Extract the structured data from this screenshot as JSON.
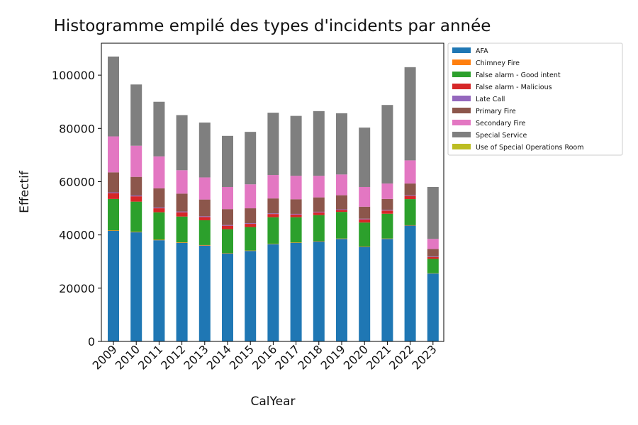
{
  "chart_data": {
    "type": "bar",
    "stacked": true,
    "title": "Histogramme empilé des types d'incidents par année",
    "xlabel": "CalYear",
    "ylabel": "Effectif",
    "ylim": [
      0,
      112000
    ],
    "yticks": [
      0,
      20000,
      40000,
      60000,
      80000,
      100000
    ],
    "grid": false,
    "legend_position": "outside-right-top",
    "categories": [
      "2009",
      "2010",
      "2011",
      "2012",
      "2013",
      "2014",
      "2015",
      "2016",
      "2017",
      "2018",
      "2019",
      "2020",
      "2021",
      "2022",
      "2023"
    ],
    "series": [
      {
        "name": "AFA",
        "color": "#1f77b4",
        "values": [
          41500,
          41000,
          38000,
          37000,
          36000,
          33000,
          34000,
          36500,
          37000,
          37500,
          38500,
          35500,
          38500,
          43500,
          25500
        ]
      },
      {
        "name": "Chimney Fire",
        "color": "#ff7f0e",
        "values": [
          200,
          200,
          200,
          200,
          200,
          150,
          150,
          150,
          150,
          150,
          150,
          150,
          150,
          150,
          100
        ]
      },
      {
        "name": "False alarm - Good intent",
        "color": "#2ca02c",
        "values": [
          11800,
          11300,
          10300,
          9700,
          9300,
          9000,
          8800,
          10000,
          9500,
          9800,
          10000,
          9000,
          9300,
          9800,
          5400
        ]
      },
      {
        "name": "False alarm - Malicious",
        "color": "#d62728",
        "values": [
          2200,
          2000,
          1500,
          1600,
          1200,
          1300,
          1200,
          1200,
          1000,
          1000,
          700,
          1200,
          1200,
          1200,
          700
        ]
      },
      {
        "name": "Late Call",
        "color": "#9467bd",
        "values": [
          300,
          300,
          300,
          300,
          300,
          250,
          250,
          250,
          250,
          250,
          250,
          250,
          250,
          250,
          200
        ]
      },
      {
        "name": "Primary Fire",
        "color": "#8c564b",
        "values": [
          7500,
          7000,
          7200,
          6700,
          6300,
          6000,
          5600,
          5600,
          5500,
          5400,
          5300,
          4500,
          4100,
          4400,
          2800
        ]
      },
      {
        "name": "Secondary Fire",
        "color": "#e377c2",
        "values": [
          13500,
          11700,
          12000,
          8800,
          8300,
          8300,
          9000,
          8800,
          8800,
          8100,
          7800,
          7400,
          5800,
          8700,
          3800
        ]
      },
      {
        "name": "Special Service",
        "color": "#7f7f7f",
        "values": [
          30000,
          23000,
          20500,
          20700,
          20600,
          19200,
          19700,
          23400,
          22500,
          24300,
          23000,
          22300,
          29500,
          35000,
          19500
        ]
      },
      {
        "name": "Use of Special Operations Room",
        "color": "#bcbd22",
        "values": [
          0,
          0,
          0,
          0,
          0,
          0,
          0,
          0,
          0,
          0,
          0,
          0,
          0,
          0,
          0
        ]
      }
    ]
  }
}
